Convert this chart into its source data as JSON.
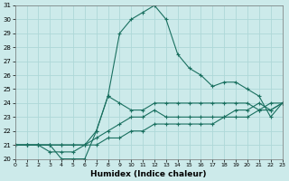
{
  "xlabel": "Humidex (Indice chaleur)",
  "background_color": "#cceaea",
  "line_color": "#1a7060",
  "grid_color": "#aed8d8",
  "xlim": [
    0,
    23
  ],
  "ylim": [
    20,
    31
  ],
  "xtick_labels": [
    "0",
    "1",
    "2",
    "3",
    "4",
    "5",
    "6",
    "7",
    "8",
    "9",
    "10",
    "11",
    "12",
    "13",
    "14",
    "15",
    "16",
    "17",
    "18",
    "19",
    "20",
    "21",
    "22",
    "23"
  ],
  "ytick_labels": [
    "20",
    "21",
    "22",
    "23",
    "24",
    "25",
    "26",
    "27",
    "28",
    "29",
    "30",
    "31"
  ],
  "series": [
    {
      "x": [
        0,
        1,
        2,
        3,
        4,
        5,
        6,
        7,
        8,
        9,
        10,
        11,
        12,
        13,
        14,
        15,
        16,
        17,
        18,
        19,
        20,
        21,
        22,
        23
      ],
      "y": [
        21,
        21,
        21,
        21,
        20,
        20,
        20,
        22,
        24.5,
        29,
        30,
        30.5,
        31,
        30,
        27.5,
        26.5,
        26,
        25.2,
        25.5,
        25.5,
        25,
        24.5,
        23,
        24
      ]
    },
    {
      "x": [
        0,
        1,
        2,
        3,
        4,
        5,
        6,
        7,
        8,
        9,
        10,
        11,
        12,
        13,
        14,
        15,
        16,
        17,
        18,
        19,
        20,
        21,
        22,
        23
      ],
      "y": [
        21,
        21,
        21,
        21,
        21,
        21,
        21,
        22,
        24.5,
        24,
        23.5,
        23.5,
        24,
        24,
        24,
        24,
        24,
        24,
        24,
        24,
        24,
        23.5,
        24,
        24
      ]
    },
    {
      "x": [
        0,
        1,
        2,
        3,
        4,
        5,
        6,
        7,
        8,
        9,
        10,
        11,
        12,
        13,
        14,
        15,
        16,
        17,
        18,
        19,
        20,
        21,
        22,
        23
      ],
      "y": [
        21,
        21,
        21,
        20.5,
        20.5,
        20.5,
        21,
        21.5,
        22,
        22.5,
        23,
        23,
        23.5,
        23,
        23,
        23,
        23,
        23,
        23,
        23.5,
        23.5,
        24,
        23.5,
        24
      ]
    },
    {
      "x": [
        0,
        1,
        2,
        3,
        4,
        5,
        6,
        7,
        8,
        9,
        10,
        11,
        12,
        13,
        14,
        15,
        16,
        17,
        18,
        19,
        20,
        21,
        22,
        23
      ],
      "y": [
        21,
        21,
        21,
        21,
        21,
        21,
        21,
        21,
        21.5,
        21.5,
        22,
        22,
        22.5,
        22.5,
        22.5,
        22.5,
        22.5,
        22.5,
        23,
        23,
        23,
        23.5,
        23.5,
        24
      ]
    }
  ]
}
